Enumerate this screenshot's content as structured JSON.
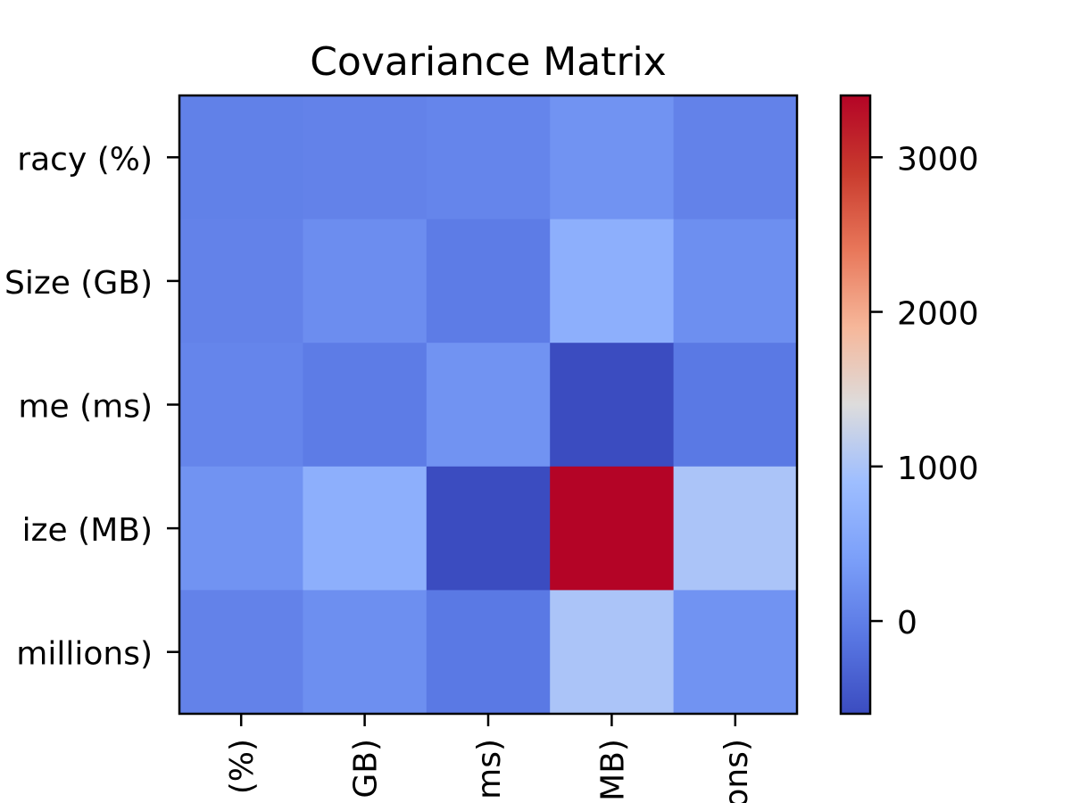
{
  "chart_data": {
    "type": "heatmap",
    "title": "Covariance Matrix",
    "xlabel": "",
    "ylabel": "",
    "row_labels": [
      "racy (%)",
      "Size (GB)",
      "me (ms)",
      "ize (MB)",
      "millions)"
    ],
    "col_labels": [
      "(%)",
      "GB)",
      "ms)",
      "MB)",
      "ons)"
    ],
    "values": [
      [
        20,
        40,
        80,
        250,
        40
      ],
      [
        40,
        180,
        -40,
        650,
        200
      ],
      [
        80,
        -40,
        250,
        -600,
        -80
      ],
      [
        250,
        650,
        -600,
        3400,
        1000
      ],
      [
        40,
        200,
        -80,
        1000,
        250
      ]
    ],
    "colorscale": "coolwarm",
    "color_range": [
      -600,
      3400
    ],
    "colorbar_ticks": [
      0,
      1000,
      2000,
      3000
    ],
    "colorbar_tick_labels": [
      "0",
      "1000",
      "2000",
      "3000"
    ],
    "grid": false,
    "legend": "colorbar right"
  }
}
